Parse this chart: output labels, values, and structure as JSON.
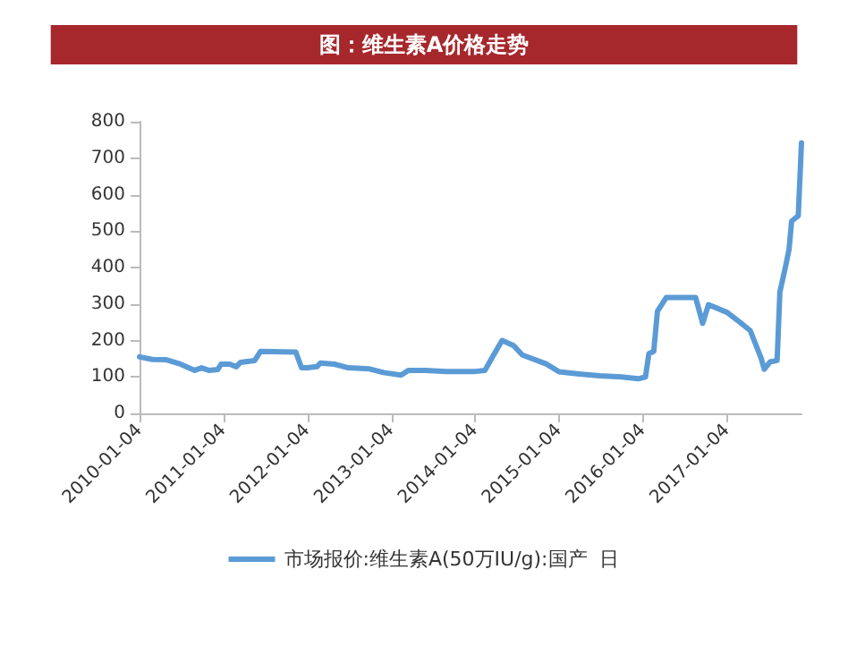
{
  "chart_data": {
    "type": "line",
    "title": "图：维生素A价格走势",
    "x": [
      "2010-01-04",
      "2010-03-01",
      "2010-05-01",
      "2010-07-01",
      "2010-09-01",
      "2010-10-01",
      "2010-11-01",
      "2010-12-10",
      "2010-12-25",
      "2011-02-01",
      "2011-03-01",
      "2011-03-20",
      "2011-05-20",
      "2011-06-15",
      "2011-11-15",
      "2011-12-10",
      "2012-01-04",
      "2012-02-15",
      "2012-03-01",
      "2012-05-01",
      "2012-07-01",
      "2012-10-01",
      "2012-12-01",
      "2013-02-15",
      "2013-03-20",
      "2013-06-01",
      "2013-09-01",
      "2014-01-04",
      "2014-02-15",
      "2014-03-25",
      "2014-05-01",
      "2014-06-20",
      "2014-07-28",
      "2014-11-08",
      "2015-01-04",
      "2015-04-01",
      "2015-07-01",
      "2015-10-01",
      "2015-12-15",
      "2016-01-15",
      "2016-01-30",
      "2016-02-20",
      "2016-03-07",
      "2016-04-15",
      "2016-08-20",
      "2016-09-20",
      "2016-10-15",
      "2017-01-04",
      "2017-03-01",
      "2017-04-15",
      "2017-06-01",
      "2017-06-15",
      "2017-07-10",
      "2017-08-10",
      "2017-08-22",
      "2017-09-15",
      "2017-10-01",
      "2017-10-12",
      "2017-11-10",
      "2017-11-24"
    ],
    "series": [
      {
        "name": "市场报价:维生素A(50万IU/g):国产  日",
        "color": "#5b9bd5",
        "values": [
          155,
          148,
          147,
          135,
          118,
          125,
          118,
          120,
          135,
          135,
          128,
          140,
          145,
          170,
          168,
          125,
          125,
          128,
          138,
          135,
          125,
          122,
          112,
          105,
          118,
          118,
          115,
          115,
          118,
          160,
          200,
          186,
          160,
          136,
          114,
          108,
          103,
          100,
          95,
          100,
          164,
          170,
          280,
          318,
          318,
          247,
          298,
          277,
          250,
          227,
          152,
          121,
          141,
          145,
          333,
          401,
          450,
          527,
          542,
          742
        ]
      }
    ],
    "xlim": [
      "2010-01-04",
      "2017-11-24"
    ],
    "xticks": [
      "2010-01-04",
      "2011-01-04",
      "2012-01-04",
      "2013-01-04",
      "2014-01-04",
      "2015-01-04",
      "2016-01-04",
      "2017-01-04"
    ],
    "ylim": [
      0,
      800
    ],
    "yticks": [
      0,
      100,
      200,
      300,
      400,
      500,
      600,
      700,
      800
    ],
    "grid": false,
    "legend": "bottom",
    "marker": "none",
    "line_style": "solid"
  }
}
